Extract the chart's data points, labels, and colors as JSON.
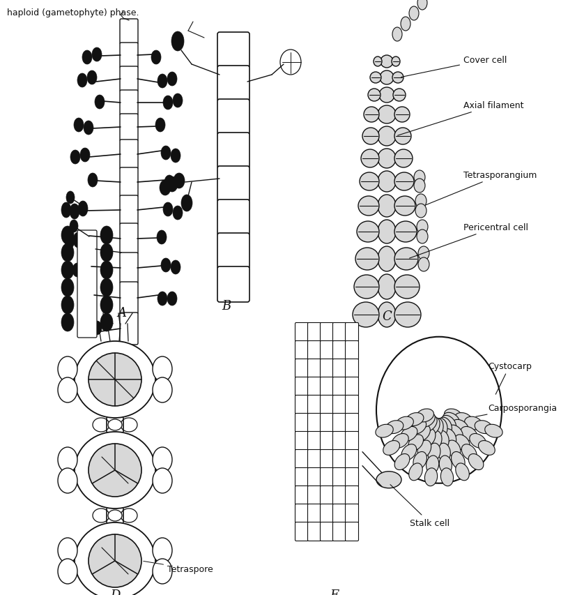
{
  "background": "#ffffff",
  "black": "#111111",
  "gray_light": "#d8d8d8",
  "gray_med": "#c0c0c0",
  "top_text": "haploid (gametophyte) phase.",
  "label_A": "A",
  "label_B": "B",
  "label_C": "C",
  "label_D": "D",
  "label_E": "E",
  "annot_C": [
    "Cover cell",
    "Axial filament",
    "Tetrasporangium",
    "Pericentral cell"
  ],
  "annot_D": [
    "Tetraspore"
  ],
  "annot_E": [
    "Cystocarp",
    "Carposporangia",
    "Stalk cell"
  ],
  "figsize": [
    8.38,
    8.54
  ],
  "dpi": 100
}
